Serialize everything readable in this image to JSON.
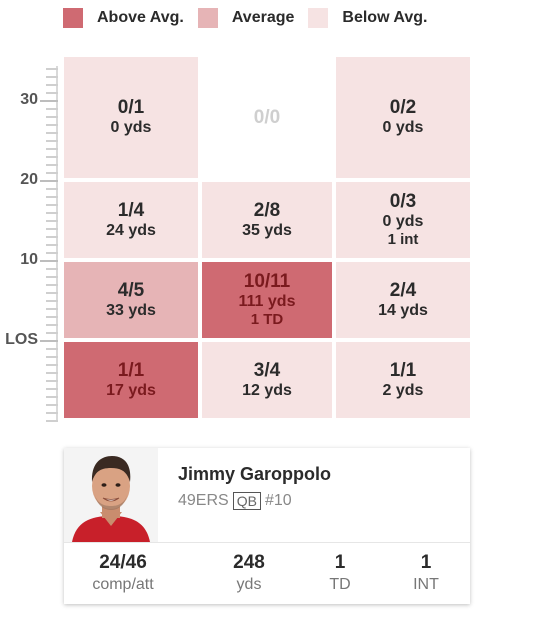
{
  "legend": {
    "above_label": "Above Avg.",
    "above_color": "#cf6a72",
    "average_label": "Average",
    "average_color": "#e6b4b6",
    "below_label": "Below Avg.",
    "below_color": "#f6e3e3"
  },
  "axis": {
    "labels": [
      "30",
      "20",
      "10",
      "LOS"
    ]
  },
  "grid": {
    "cells": [
      {
        "frac": "0/1",
        "yds": "0 yds",
        "extra": "",
        "level": "below"
      },
      {
        "frac": "0/0",
        "yds": "",
        "extra": "",
        "level": "empty"
      },
      {
        "frac": "0/2",
        "yds": "0 yds",
        "extra": "",
        "level": "below"
      },
      {
        "frac": "1/4",
        "yds": "24 yds",
        "extra": "",
        "level": "below"
      },
      {
        "frac": "2/8",
        "yds": "35 yds",
        "extra": "",
        "level": "below"
      },
      {
        "frac": "0/3",
        "yds": "0 yds",
        "extra": "1 int",
        "level": "below"
      },
      {
        "frac": "4/5",
        "yds": "33 yds",
        "extra": "",
        "level": "average"
      },
      {
        "frac": "10/11",
        "yds": "111 yds",
        "extra": "1 TD",
        "level": "above"
      },
      {
        "frac": "2/4",
        "yds": "14 yds",
        "extra": "",
        "level": "below"
      },
      {
        "frac": "1/1",
        "yds": "17 yds",
        "extra": "",
        "level": "above"
      },
      {
        "frac": "3/4",
        "yds": "12 yds",
        "extra": "",
        "level": "below"
      },
      {
        "frac": "1/1",
        "yds": "2 yds",
        "extra": "",
        "level": "below"
      }
    ]
  },
  "player": {
    "name": "Jimmy Garoppolo",
    "team": "49ERS",
    "position": "QB",
    "number": "#10",
    "stats": [
      {
        "value": "24/46",
        "label": "comp/att"
      },
      {
        "value": "248",
        "label": "yds"
      },
      {
        "value": "1",
        "label": "TD"
      },
      {
        "value": "1",
        "label": "INT"
      }
    ]
  }
}
